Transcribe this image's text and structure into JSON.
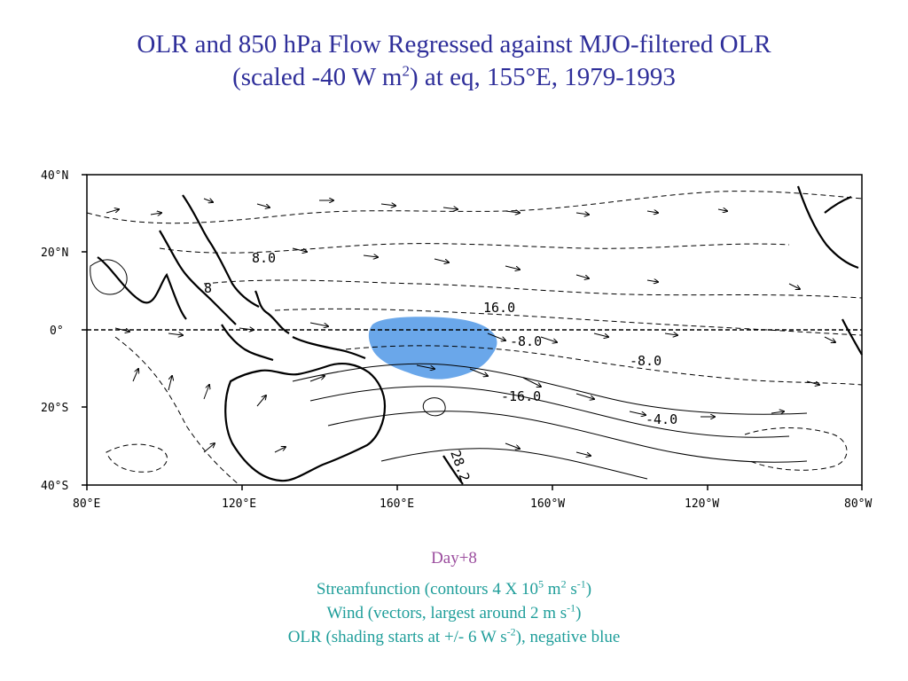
{
  "title": {
    "line1": "OLR and 850 hPa Flow Regressed against MJO-filtered OLR",
    "line2_a": "(scaled -40 W m",
    "line2_sup": "2",
    "line2_b": ") at eq, 155°E, 1979-1993"
  },
  "map": {
    "lat_ticks": [
      "40°N",
      "20°N",
      "0°",
      "20°S",
      "40°S"
    ],
    "lon_ticks": [
      "80°E",
      "120°E",
      "160°E",
      "160°W",
      "120°W",
      "80°W"
    ],
    "contour_labels": [
      "8.0",
      "8",
      "16.0",
      "-8.0",
      "-8.0",
      "-16.0",
      "-4.0",
      "28.2"
    ],
    "shading_color": "#6aa7ea"
  },
  "caption": {
    "day": "Day+8",
    "streamfunction_a": "Streamfunction (contours 4 X 10",
    "streamfunction_sup1": "5",
    "streamfunction_b": " m",
    "streamfunction_sup2": "2",
    "streamfunction_c": " s",
    "streamfunction_sup3": "-1",
    "streamfunction_d": ")",
    "wind_a": "Wind (vectors, largest around 2 m s",
    "wind_sup": "-1",
    "wind_b": ")",
    "olr_a": "OLR (shading starts at +/- 6 W s",
    "olr_sup": "-2",
    "olr_b": "), negative blue"
  }
}
